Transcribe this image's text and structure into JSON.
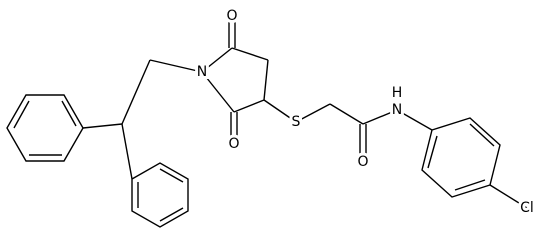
{
  "atoms": {
    "o_top": "O",
    "n_ring": "N",
    "o_bottom": "O",
    "s": "S",
    "o_amide": "O",
    "h_amide": "H",
    "n_amide": "N",
    "cl": "Cl"
  }
}
